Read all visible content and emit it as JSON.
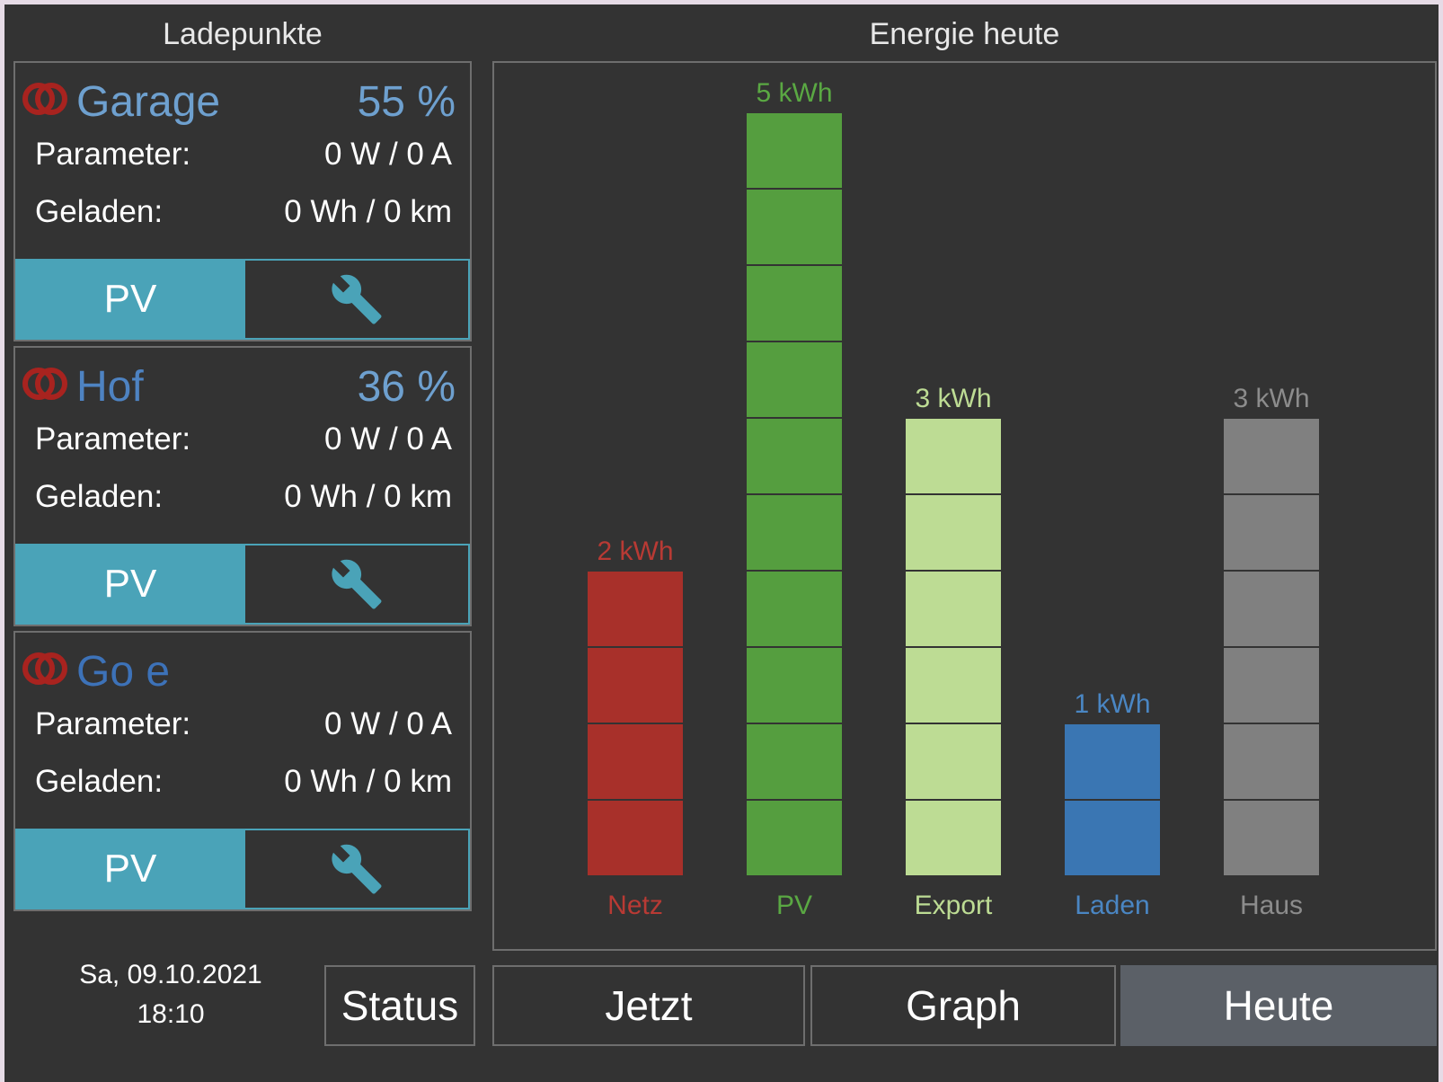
{
  "sections": {
    "left_title": "Ladepunkte",
    "right_title": "Energie heute"
  },
  "chargepoints": [
    {
      "name": "Garage",
      "soc": "55 %",
      "name_color": "#6ea0cf",
      "parameter_label": "Parameter:",
      "parameter_value": "0 W / 0 A",
      "charged_label": "Geladen:",
      "charged_value": "0 Wh / 0 km",
      "mode_label": "PV",
      "toggle_icon": "plug-toggle-icon",
      "settings_icon": "wrench-icon"
    },
    {
      "name": "Hof",
      "soc": "36 %",
      "name_color": "#4e83c2",
      "parameter_label": "Parameter:",
      "parameter_value": "0 W / 0 A",
      "charged_label": "Geladen:",
      "charged_value": "0 Wh / 0 km",
      "mode_label": "PV",
      "toggle_icon": "plug-toggle-icon",
      "settings_icon": "wrench-icon"
    },
    {
      "name": "Go e",
      "soc": "",
      "name_color": "#3d72b8",
      "parameter_label": "Parameter:",
      "parameter_value": "0 W / 0 A",
      "charged_label": "Geladen:",
      "charged_value": "0 Wh / 0 km",
      "mode_label": "PV",
      "toggle_icon": "plug-toggle-icon",
      "settings_icon": "wrench-icon"
    }
  ],
  "footer": {
    "date": "Sa, 09.10.2021",
    "time": "18:10",
    "status_button": "Status"
  },
  "nav": {
    "tabs": [
      {
        "label": "Jetzt",
        "active": false
      },
      {
        "label": "Graph",
        "active": false
      },
      {
        "label": "Heute",
        "active": true
      }
    ]
  },
  "colors": {
    "toggle_red": "#a8231f",
    "mode_button": "#4aa3b8",
    "wrench": "#4aa3b8"
  },
  "chart_data": {
    "type": "bar",
    "title": "Energie heute",
    "categories": [
      "Netz",
      "PV",
      "Export",
      "Laden",
      "Haus"
    ],
    "values": [
      2,
      5,
      3,
      1,
      3
    ],
    "value_labels": [
      "2 kWh",
      "5 kWh",
      "3 kWh",
      "1 kWh",
      "3 kWh"
    ],
    "unit": "kWh",
    "colors": [
      "#a8302a",
      "#559e3f",
      "#bddc94",
      "#3a76b3",
      "#808080"
    ],
    "label_colors": [
      "#b83a34",
      "#5aa843",
      "#bddc94",
      "#4a86c3",
      "#8c8c8c"
    ],
    "ylim": [
      0,
      5
    ],
    "segments_per_kwh": 2,
    "grid": false
  }
}
